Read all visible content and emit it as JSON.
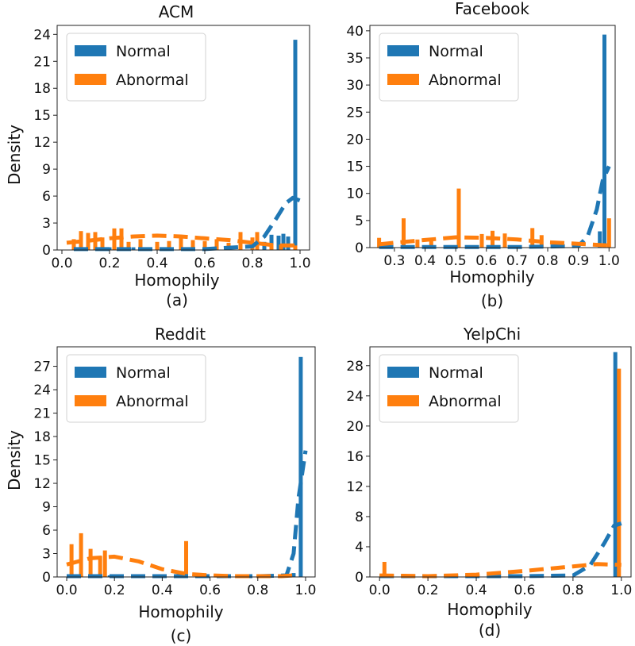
{
  "figure": {
    "colors": {
      "normal": "#1f77b4",
      "abnormal": "#ff7f0e"
    }
  },
  "chart_data": [
    {
      "type": "bar",
      "title": "ACM",
      "caption": "(a)",
      "xlabel": "Homophily",
      "ylabel": "Density",
      "xlim": [
        -0.02,
        1.04
      ],
      "ylim": [
        0,
        25
      ],
      "xticks": [
        "0.0",
        "0.2",
        "0.4",
        "0.6",
        "0.8",
        "1.0"
      ],
      "xtick_values": [
        0,
        0.2,
        0.4,
        0.6,
        0.8,
        1.0
      ],
      "yticks": [
        "0",
        "3",
        "6",
        "9",
        "12",
        "15",
        "18",
        "21",
        "24"
      ],
      "ytick_values": [
        0,
        3,
        6,
        9,
        12,
        15,
        18,
        21,
        24
      ],
      "legend": {
        "position": "top-left",
        "entries": [
          "Normal",
          "Abnormal"
        ]
      },
      "series": [
        {
          "name": "Normal",
          "bars": [
            [
              0.1,
              0.2
            ],
            [
              0.15,
              0.2
            ],
            [
              0.2,
              0.3
            ],
            [
              0.25,
              0.2
            ],
            [
              0.3,
              0.3
            ],
            [
              0.35,
              0.2
            ],
            [
              0.4,
              0.2
            ],
            [
              0.45,
              0.2
            ],
            [
              0.5,
              0.2
            ],
            [
              0.55,
              0.2
            ],
            [
              0.6,
              0.2
            ],
            [
              0.65,
              0.3
            ],
            [
              0.7,
              0.3
            ],
            [
              0.75,
              0.3
            ],
            [
              0.8,
              0.4
            ],
            [
              0.85,
              0.9
            ],
            [
              0.88,
              1.7
            ],
            [
              0.91,
              1.6
            ],
            [
              0.93,
              1.8
            ],
            [
              0.95,
              1.5
            ],
            [
              0.98,
              23.4
            ]
          ],
          "kde": [
            [
              0.05,
              0.1
            ],
            [
              0.2,
              0.1
            ],
            [
              0.4,
              0.1
            ],
            [
              0.6,
              0.1
            ],
            [
              0.8,
              0.4
            ],
            [
              0.85,
              1.5
            ],
            [
              0.9,
              3.5
            ],
            [
              0.94,
              5.2
            ],
            [
              0.97,
              5.8
            ],
            [
              1.0,
              5.5
            ]
          ]
        },
        {
          "name": "Abnormal",
          "bars": [
            [
              0.05,
              1.2
            ],
            [
              0.08,
              2.1
            ],
            [
              0.11,
              1.9
            ],
            [
              0.14,
              2.0
            ],
            [
              0.17,
              1.4
            ],
            [
              0.22,
              2.4
            ],
            [
              0.25,
              2.4
            ],
            [
              0.28,
              0.9
            ],
            [
              0.33,
              1.2
            ],
            [
              0.4,
              0.9
            ],
            [
              0.45,
              1.0
            ],
            [
              0.5,
              1.4
            ],
            [
              0.55,
              1.1
            ],
            [
              0.6,
              1.0
            ],
            [
              0.65,
              1.2
            ],
            [
              0.7,
              0.8
            ],
            [
              0.75,
              2.0
            ],
            [
              0.8,
              1.4
            ],
            [
              0.82,
              2.0
            ],
            [
              0.88,
              0.6
            ],
            [
              0.92,
              0.6
            ],
            [
              0.98,
              0.5
            ]
          ],
          "kde": [
            [
              0.02,
              0.8
            ],
            [
              0.1,
              1.0
            ],
            [
              0.2,
              1.3
            ],
            [
              0.3,
              1.5
            ],
            [
              0.4,
              1.6
            ],
            [
              0.5,
              1.5
            ],
            [
              0.6,
              1.3
            ],
            [
              0.7,
              1.1
            ],
            [
              0.8,
              0.8
            ],
            [
              0.9,
              0.5
            ],
            [
              1.0,
              0.5
            ]
          ]
        }
      ]
    },
    {
      "type": "bar",
      "title": "Facebook",
      "caption": "(b)",
      "xlabel": "Homophily",
      "ylabel": "",
      "xlim": [
        0.22,
        1.02
      ],
      "ylim": [
        0,
        41
      ],
      "xticks": [
        "0.3",
        "0.4",
        "0.5",
        "0.6",
        "0.7",
        "0.8",
        "0.9",
        "1.0"
      ],
      "xtick_values": [
        0.3,
        0.4,
        0.5,
        0.6,
        0.7,
        0.8,
        0.9,
        1.0
      ],
      "yticks": [
        "0",
        "5",
        "10",
        "15",
        "20",
        "25",
        "30",
        "35",
        "40"
      ],
      "ytick_values": [
        0,
        5,
        10,
        15,
        20,
        25,
        30,
        35,
        40
      ],
      "legend": {
        "position": "top-left",
        "entries": [
          "Normal",
          "Abnormal"
        ]
      },
      "series": [
        {
          "name": "Normal",
          "bars": [
            [
              0.97,
              3.0
            ],
            [
              0.985,
              39.3
            ]
          ],
          "kde": [
            [
              0.25,
              0.1
            ],
            [
              0.5,
              0.1
            ],
            [
              0.7,
              0.1
            ],
            [
              0.9,
              0.3
            ],
            [
              0.93,
              2.0
            ],
            [
              0.96,
              7.0
            ],
            [
              0.98,
              12.5
            ],
            [
              1.0,
              15.0
            ]
          ]
        },
        {
          "name": "Abnormal",
          "bars": [
            [
              0.25,
              1.8
            ],
            [
              0.33,
              5.4
            ],
            [
              0.375,
              1.5
            ],
            [
              0.42,
              1.7
            ],
            [
              0.51,
              10.9
            ],
            [
              0.585,
              2.5
            ],
            [
              0.62,
              3.1
            ],
            [
              0.66,
              2.6
            ],
            [
              0.75,
              3.6
            ],
            [
              0.78,
              2.3
            ],
            [
              0.9,
              1.0
            ],
            [
              1.0,
              5.4
            ]
          ],
          "kde": [
            [
              0.25,
              0.6
            ],
            [
              0.3,
              0.9
            ],
            [
              0.4,
              1.4
            ],
            [
              0.5,
              1.9
            ],
            [
              0.6,
              1.8
            ],
            [
              0.7,
              1.5
            ],
            [
              0.8,
              1.0
            ],
            [
              0.9,
              0.7
            ],
            [
              1.0,
              0.4
            ]
          ]
        }
      ]
    },
    {
      "type": "bar",
      "title": "Reddit",
      "caption": "(c)",
      "xlabel": "Homophily",
      "ylabel": "Density",
      "xlim": [
        -0.04,
        1.04
      ],
      "ylim": [
        0,
        29.5
      ],
      "xticks": [
        "0.0",
        "0.2",
        "0.4",
        "0.6",
        "0.8",
        "1.0"
      ],
      "xtick_values": [
        0,
        0.2,
        0.4,
        0.6,
        0.8,
        1.0
      ],
      "yticks": [
        "0",
        "3",
        "6",
        "9",
        "12",
        "15",
        "18",
        "21",
        "24",
        "27"
      ],
      "ytick_values": [
        0,
        3,
        6,
        9,
        12,
        15,
        18,
        21,
        24,
        27
      ],
      "legend": {
        "position": "top-left",
        "entries": [
          "Normal",
          "Abnormal"
        ]
      },
      "series": [
        {
          "name": "Normal",
          "bars": [
            [
              0.02,
              0.3
            ],
            [
              0.06,
              0.3
            ],
            [
              0.1,
              0.2
            ],
            [
              0.14,
              0.3
            ],
            [
              0.18,
              0.2
            ],
            [
              0.5,
              0.2
            ],
            [
              0.95,
              0.5
            ],
            [
              0.98,
              28.2
            ]
          ],
          "kde": [
            [
              0.0,
              0.1
            ],
            [
              0.2,
              0.1
            ],
            [
              0.5,
              0.1
            ],
            [
              0.8,
              0.1
            ],
            [
              0.92,
              0.2
            ],
            [
              0.95,
              3.0
            ],
            [
              0.97,
              10.0
            ],
            [
              1.0,
              16.2
            ]
          ]
        },
        {
          "name": "Abnormal",
          "bars": [
            [
              0.02,
              4.2
            ],
            [
              0.06,
              5.6
            ],
            [
              0.1,
              3.6
            ],
            [
              0.14,
              2.7
            ],
            [
              0.16,
              3.4
            ],
            [
              0.5,
              4.6
            ]
          ],
          "kde": [
            [
              0.0,
              1.6
            ],
            [
              0.1,
              2.4
            ],
            [
              0.2,
              2.6
            ],
            [
              0.3,
              2.0
            ],
            [
              0.4,
              1.0
            ],
            [
              0.5,
              0.4
            ],
            [
              0.6,
              0.2
            ],
            [
              0.7,
              0.1
            ],
            [
              0.8,
              0.1
            ],
            [
              0.9,
              0.1
            ],
            [
              0.95,
              0.2
            ]
          ]
        }
      ]
    },
    {
      "type": "bar",
      "title": "YelpChi",
      "caption": "(d)",
      "xlabel": "Homophily",
      "ylabel": "",
      "xlim": [
        -0.04,
        1.04
      ],
      "ylim": [
        0,
        30.5
      ],
      "xticks": [
        "0.0",
        "0.2",
        "0.4",
        "0.6",
        "0.8",
        "1.0"
      ],
      "xtick_values": [
        0,
        0.2,
        0.4,
        0.6,
        0.8,
        1.0
      ],
      "yticks": [
        "0",
        "4",
        "8",
        "12",
        "16",
        "20",
        "24",
        "28"
      ],
      "ytick_values": [
        0,
        4,
        8,
        12,
        16,
        20,
        24,
        28
      ],
      "legend": {
        "position": "top-left",
        "entries": [
          "Normal",
          "Abnormal"
        ]
      },
      "series": [
        {
          "name": "Normal",
          "bars": [
            [
              0.975,
              29.8
            ]
          ],
          "kde": [
            [
              0.0,
              0.1
            ],
            [
              0.4,
              0.1
            ],
            [
              0.6,
              0.1
            ],
            [
              0.8,
              0.2
            ],
            [
              0.87,
              1.5
            ],
            [
              0.93,
              4.5
            ],
            [
              0.97,
              6.8
            ],
            [
              1.0,
              7.1
            ]
          ]
        },
        {
          "name": "Abnormal",
          "bars": [
            [
              0.02,
              2.0
            ],
            [
              0.99,
              27.6
            ]
          ],
          "kde": [
            [
              0.0,
              0.2
            ],
            [
              0.2,
              0.1
            ],
            [
              0.4,
              0.3
            ],
            [
              0.6,
              0.8
            ],
            [
              0.8,
              1.4
            ],
            [
              0.9,
              1.7
            ],
            [
              1.0,
              1.6
            ]
          ]
        }
      ]
    }
  ]
}
